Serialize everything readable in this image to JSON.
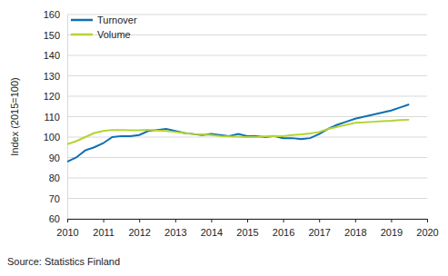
{
  "chart_data": {
    "type": "line",
    "y_label": "Index (2015=100)",
    "source": "Source: Statistics Finland",
    "x": [
      2010,
      2010.25,
      2010.5,
      2010.75,
      2011,
      2011.25,
      2011.5,
      2011.75,
      2012,
      2012.25,
      2012.5,
      2012.75,
      2013,
      2013.25,
      2013.5,
      2013.75,
      2014,
      2014.25,
      2014.5,
      2014.75,
      2015,
      2015.25,
      2015.5,
      2015.75,
      2016,
      2016.25,
      2016.5,
      2016.75,
      2017,
      2017.25,
      2017.5,
      2017.75,
      2018,
      2018.25,
      2018.5,
      2018.75,
      2019,
      2019.25,
      2019.5
    ],
    "series": [
      {
        "name": "Turnover",
        "color": "#0e6fb3",
        "values": [
          88,
          90,
          93.5,
          95,
          97,
          100,
          100.5,
          100.5,
          101,
          103,
          103.5,
          104,
          103,
          102,
          101.5,
          101,
          101.5,
          101,
          100.5,
          101.5,
          100.5,
          100.5,
          100,
          100.5,
          99.5,
          99.5,
          99,
          99.5,
          101.5,
          104,
          106,
          107.5,
          109,
          110,
          111,
          112,
          113,
          114.5,
          116
        ]
      },
      {
        "name": "Volume",
        "color": "#b4d335",
        "values": [
          96.5,
          98,
          100,
          102,
          103,
          103.5,
          103.5,
          103.3,
          103.3,
          103.5,
          103.2,
          103,
          102.5,
          102,
          101.5,
          101.3,
          101,
          100.5,
          100.3,
          100.2,
          100,
          100,
          100.3,
          100.5,
          100.5,
          101,
          101.3,
          101.8,
          102.5,
          104,
          105,
          106,
          107,
          107.2,
          107.5,
          107.8,
          108,
          108.3,
          108.5
        ]
      }
    ],
    "xlim": [
      2010,
      2020
    ],
    "xticks": [
      2010,
      2011,
      2012,
      2013,
      2014,
      2015,
      2016,
      2017,
      2018,
      2019,
      2020
    ],
    "ylim": [
      60,
      160
    ],
    "yticks": [
      60,
      70,
      80,
      90,
      100,
      110,
      120,
      130,
      140,
      150,
      160
    ],
    "grid": true,
    "legend": "upper left"
  }
}
